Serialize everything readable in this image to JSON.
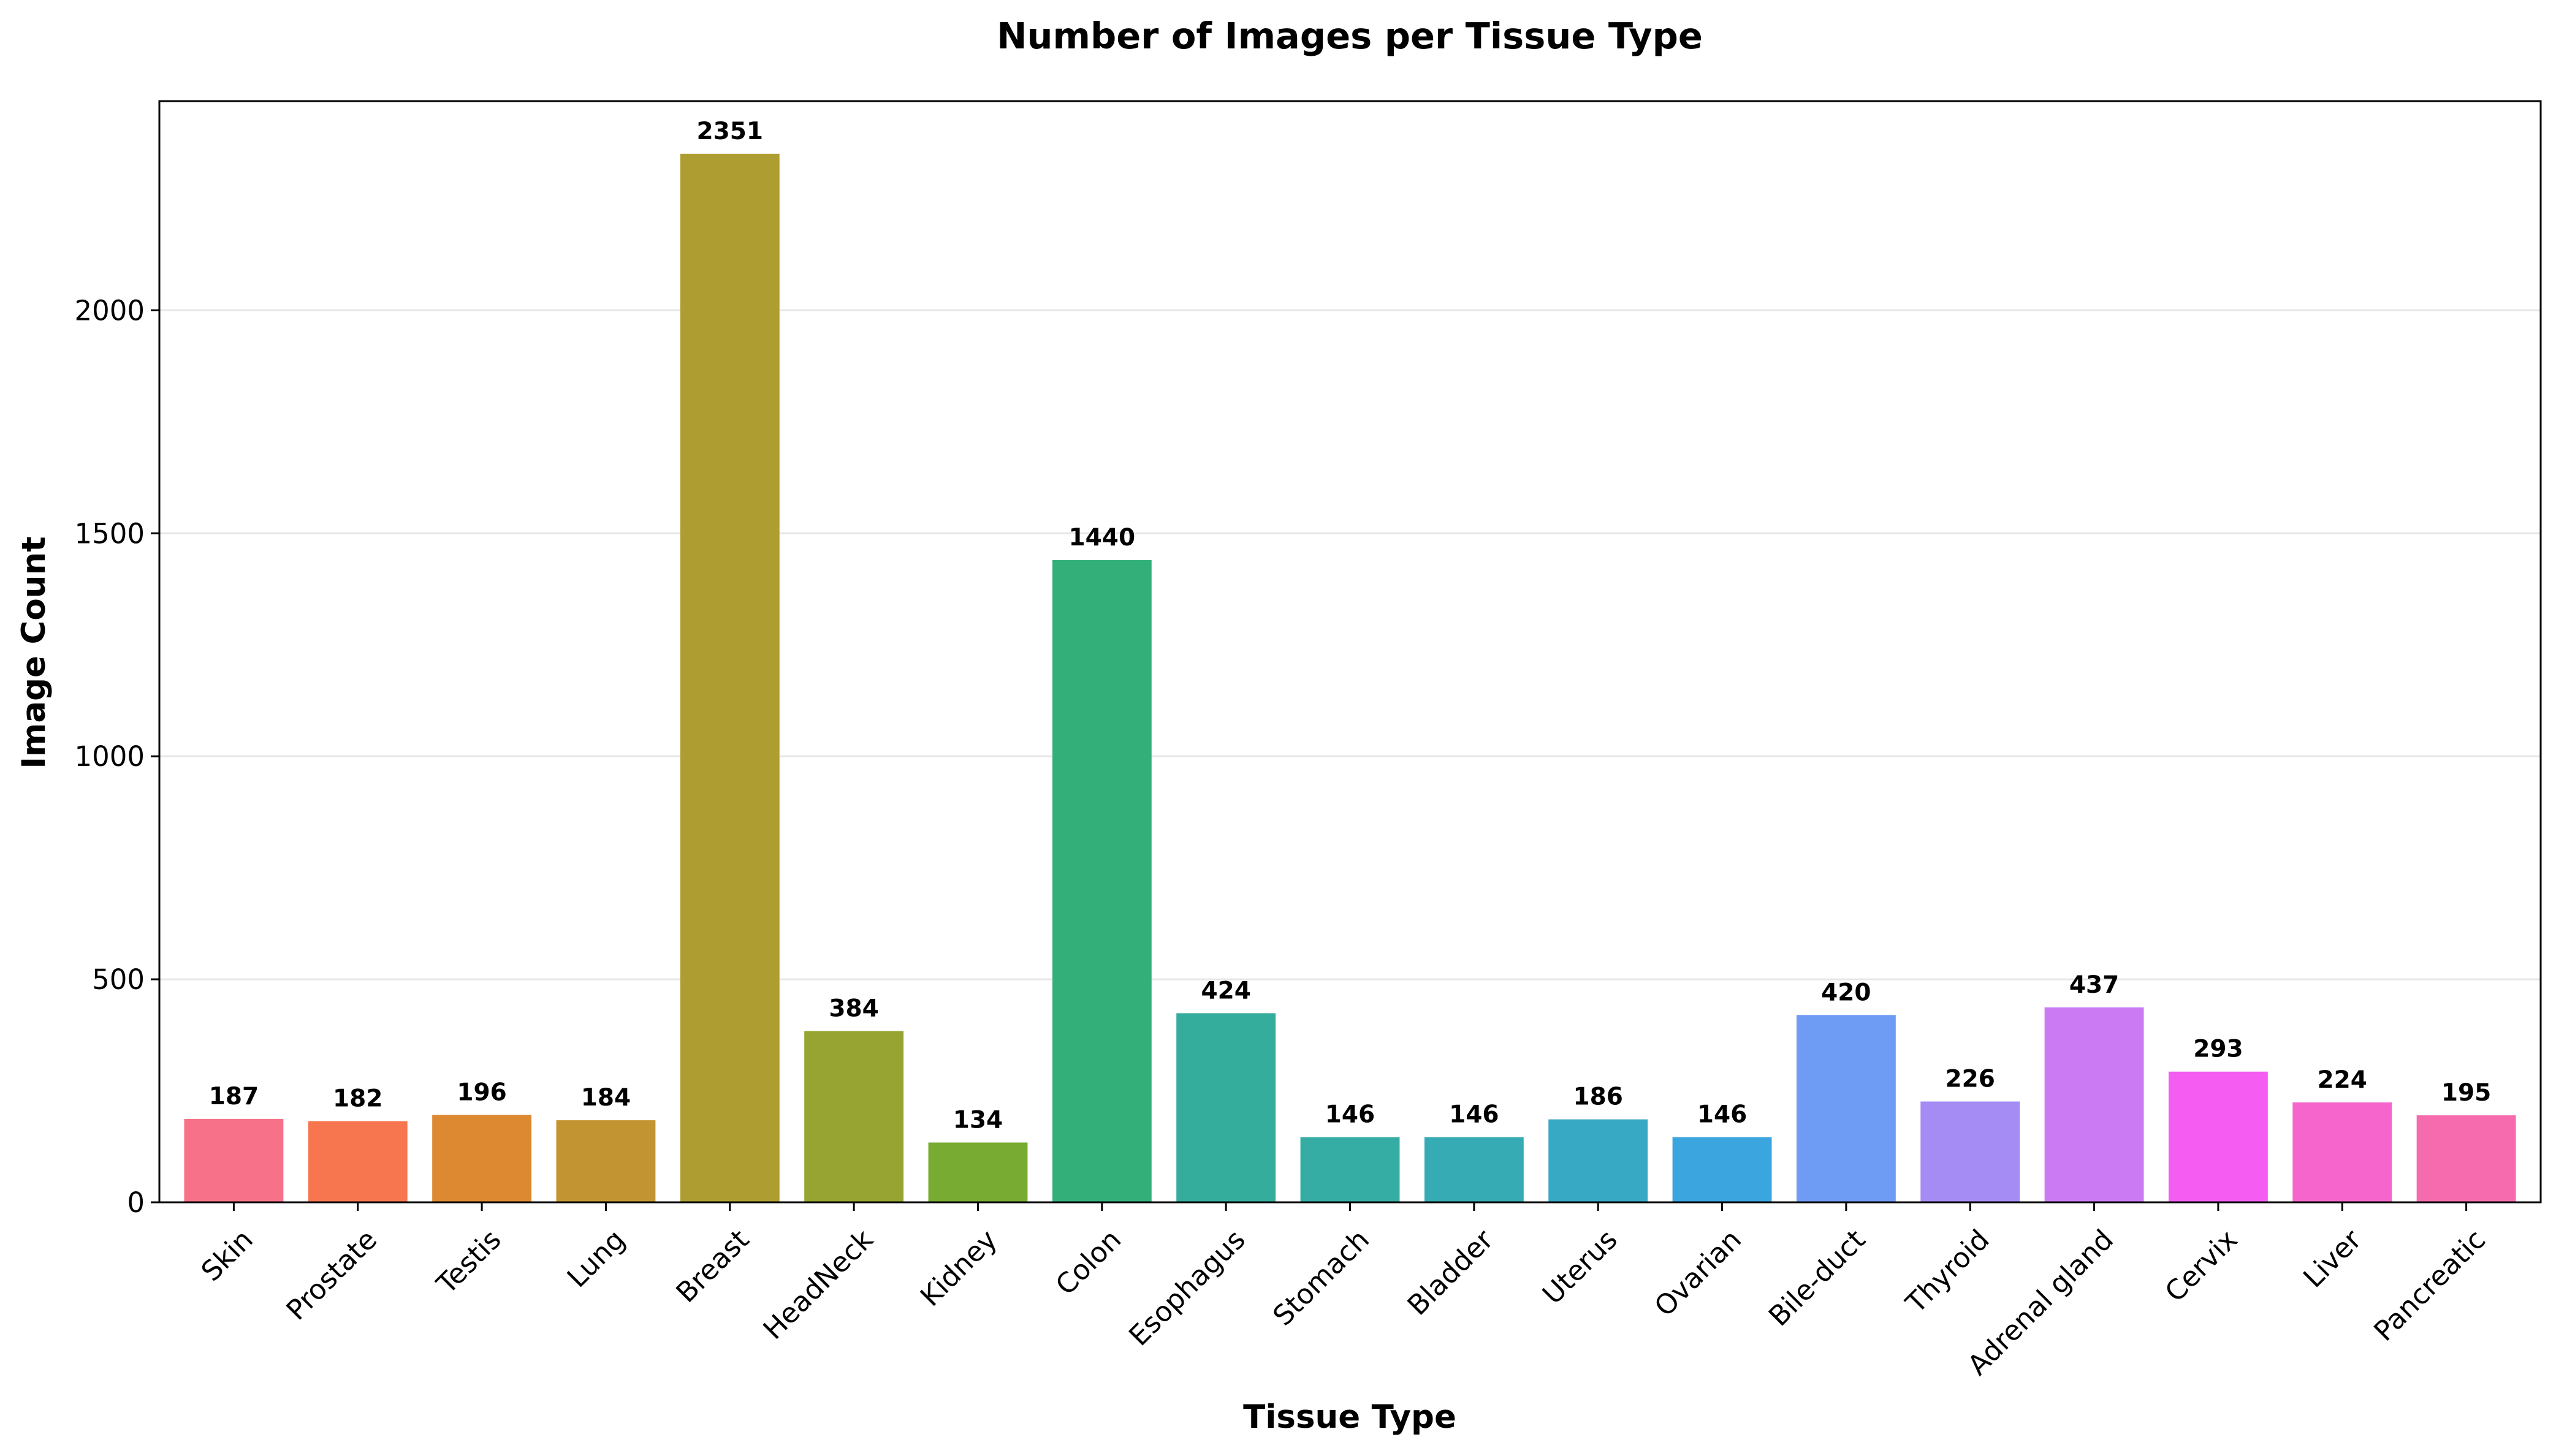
{
  "chart_data": {
    "type": "bar",
    "title": "Number of Images per Tissue Type",
    "xlabel": "Tissue Type",
    "ylabel": "Image Count",
    "categories": [
      "Skin",
      "Prostate",
      "Testis",
      "Lung",
      "Breast",
      "HeadNeck",
      "Kidney",
      "Colon",
      "Esophagus",
      "Stomach",
      "Bladder",
      "Uterus",
      "Ovarian",
      "Bile-duct",
      "Thyroid",
      "Adrenal gland",
      "Cervix",
      "Liver",
      "Pancreatic"
    ],
    "values": [
      187,
      182,
      196,
      184,
      2351,
      384,
      134,
      1440,
      424,
      146,
      146,
      186,
      146,
      420,
      226,
      437,
      293,
      224,
      195
    ],
    "colors": [
      "#f77189",
      "#f7754f",
      "#dc8932",
      "#c39532",
      "#ae9d31",
      "#97a431",
      "#77ab31",
      "#33b07a",
      "#35ad9c",
      "#36ada4",
      "#37abb4",
      "#38a9c5",
      "#3aa5df",
      "#6e9bf4",
      "#a48cf4",
      "#cc7af4",
      "#f45cf2",
      "#f565cc",
      "#f66bad"
    ],
    "ylim": [
      0,
      2469
    ],
    "yticks": [
      0,
      500,
      1000,
      1500,
      2000
    ],
    "grid": "y",
    "legend": "none"
  }
}
